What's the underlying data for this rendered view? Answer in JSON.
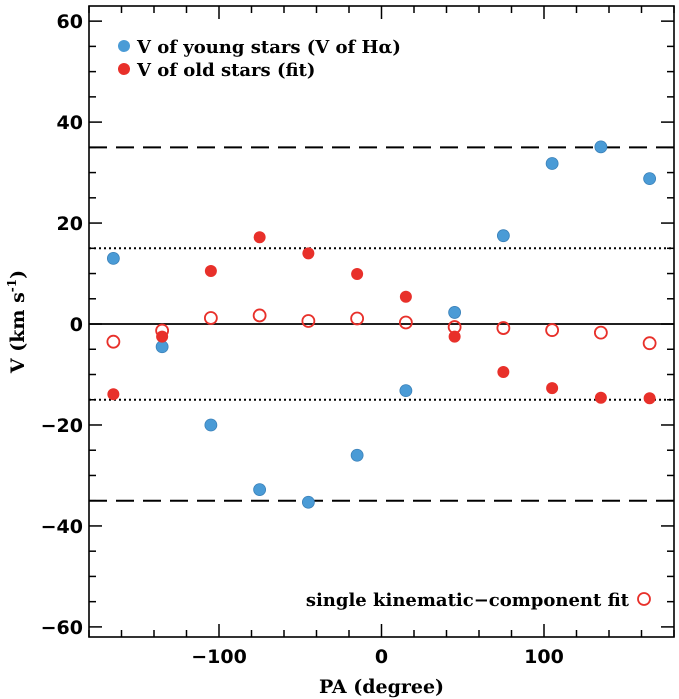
{
  "chart_data": {
    "type": "scatter",
    "xlabel": "PA (degree)",
    "ylabel_main": "V (km s",
    "ylabel_sup": "-1",
    "ylabel_close": ")",
    "xlim": [
      -180,
      180
    ],
    "ylim": [
      -62,
      63
    ],
    "x_ticks": [
      -100,
      0,
      100
    ],
    "x_tick_labels": [
      "−100",
      "0",
      "100"
    ],
    "y_ticks": [
      -60,
      -40,
      -20,
      0,
      20,
      40,
      60
    ],
    "y_tick_labels": [
      "−60",
      "−40",
      "−20",
      "0",
      "20",
      "40",
      "60"
    ],
    "x_minor_step": 20,
    "y_minor_step": 5,
    "reference_lines": [
      {
        "y": 35,
        "style": "dashed"
      },
      {
        "y": -35,
        "style": "dashed"
      },
      {
        "y": 15,
        "style": "dotted"
      },
      {
        "y": -15,
        "style": "dotted"
      },
      {
        "y": 0,
        "style": "solid"
      }
    ],
    "series": [
      {
        "name": "V of young stars (V of Hα)",
        "color": "#4a9bd6",
        "marker": "filled-circle",
        "points": [
          {
            "x": -165,
            "y": 13
          },
          {
            "x": -135,
            "y": -4.5
          },
          {
            "x": -105,
            "y": -20
          },
          {
            "x": -75,
            "y": -32.8
          },
          {
            "x": -45,
            "y": -35.3
          },
          {
            "x": -15,
            "y": -26
          },
          {
            "x": 15,
            "y": -13.2
          },
          {
            "x": 45,
            "y": 2.3
          },
          {
            "x": 75,
            "y": 17.5
          },
          {
            "x": 105,
            "y": 31.8
          },
          {
            "x": 135,
            "y": 35.1
          },
          {
            "x": 165,
            "y": 28.8
          }
        ]
      },
      {
        "name": "V of old stars (fit)",
        "color": "#e8302a",
        "marker": "filled-circle",
        "points": [
          {
            "x": -165,
            "y": -13.9
          },
          {
            "x": -135,
            "y": -2.5
          },
          {
            "x": -105,
            "y": 10.5
          },
          {
            "x": -75,
            "y": 17.2
          },
          {
            "x": -45,
            "y": 14
          },
          {
            "x": -15,
            "y": 9.9
          },
          {
            "x": 15,
            "y": 5.4
          },
          {
            "x": 45,
            "y": -2.5
          },
          {
            "x": 75,
            "y": -9.5
          },
          {
            "x": 105,
            "y": -12.7
          },
          {
            "x": 135,
            "y": -14.6
          },
          {
            "x": 165,
            "y": -14.7
          }
        ]
      },
      {
        "name": "single kinematic−component fit",
        "color": "#e8302a",
        "marker": "open-circle",
        "points": [
          {
            "x": -165,
            "y": -3.5
          },
          {
            "x": -135,
            "y": -1.3
          },
          {
            "x": -105,
            "y": 1.2
          },
          {
            "x": -75,
            "y": 1.7
          },
          {
            "x": -45,
            "y": 0.6
          },
          {
            "x": -15,
            "y": 1.1
          },
          {
            "x": 15,
            "y": 0.3
          },
          {
            "x": 45,
            "y": -0.6
          },
          {
            "x": 75,
            "y": -0.8
          },
          {
            "x": 105,
            "y": -1.2
          },
          {
            "x": 135,
            "y": -1.7
          },
          {
            "x": 165,
            "y": -3.8
          }
        ]
      }
    ],
    "legend": [
      {
        "label": "V of young stars (V of Hα)",
        "color": "#4a9bd6",
        "marker": "filled-circle",
        "placement": "top-left"
      },
      {
        "label": "V of old stars (fit)",
        "color": "#e8302a",
        "marker": "filled-circle",
        "placement": "top-left"
      },
      {
        "label": "single kinematic−component fit",
        "color": "#e8302a",
        "marker": "open-circle",
        "placement": "bottom-right"
      }
    ],
    "grid": false
  }
}
